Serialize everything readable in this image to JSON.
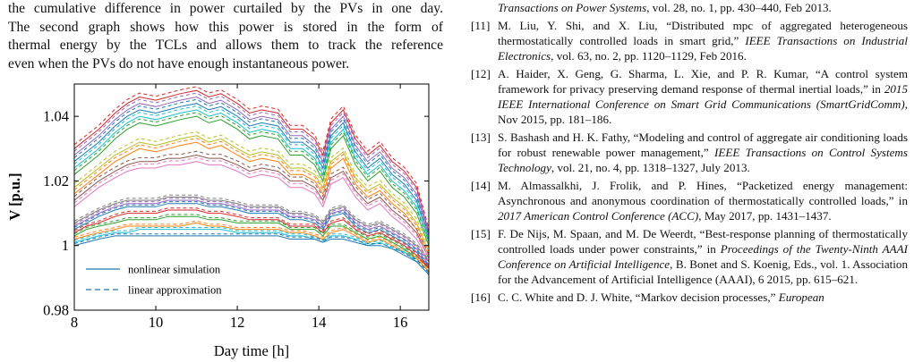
{
  "left_column": {
    "lines": [
      "the cumulative difference in power curtailed by the PVs in one day.",
      "The second graph shows how this power is stored in the form of",
      "thermal energy by the TCLs and allows them to track the reference",
      "even when the PVs do not have enough instantaneous power."
    ]
  },
  "chart_data": {
    "type": "line",
    "xlabel": "Day time [h]",
    "ylabel": "V [p.u.]",
    "xlim": [
      8,
      16.7
    ],
    "ylim": [
      0.98,
      1.05
    ],
    "x_ticks": [
      "8",
      "10",
      "12",
      "14",
      "16"
    ],
    "y_ticks": [
      "0.98",
      "1",
      "1.02",
      "1.04"
    ],
    "legend_position": "bottom-left",
    "legend": [
      {
        "label": "nonlinear simulation",
        "style": "solid",
        "color": "#1f77b4"
      },
      {
        "label": "linear approximation",
        "style": "dashed",
        "color": "#1f77b4"
      }
    ],
    "grid": false,
    "series_profile_x": [
      8.0,
      8.3,
      8.6,
      9.0,
      9.3,
      9.6,
      10.0,
      10.3,
      10.6,
      11.0,
      11.3,
      11.6,
      12.0,
      12.3,
      12.6,
      13.0,
      13.3,
      13.6,
      13.9,
      14.1,
      14.3,
      14.6,
      14.9,
      15.2,
      15.5,
      15.8,
      16.1,
      16.4,
      16.7
    ],
    "series": [
      {
        "color": "#d62728",
        "values": [
          1.03,
          1.033,
          1.036,
          1.041,
          1.044,
          1.046,
          1.045,
          1.046,
          1.047,
          1.048,
          1.046,
          1.047,
          1.044,
          1.041,
          1.042,
          1.041,
          1.036,
          1.036,
          1.033,
          1.028,
          1.038,
          1.042,
          1.033,
          1.028,
          1.031,
          1.026,
          1.023,
          1.018,
          1.004
        ]
      },
      {
        "color": "#9467bd",
        "values": [
          1.028,
          1.031,
          1.034,
          1.039,
          1.042,
          1.044,
          1.043,
          1.044,
          1.045,
          1.046,
          1.044,
          1.045,
          1.042,
          1.039,
          1.04,
          1.039,
          1.034,
          1.034,
          1.031,
          1.026,
          1.036,
          1.04,
          1.031,
          1.026,
          1.029,
          1.024,
          1.021,
          1.016,
          1.003
        ]
      },
      {
        "color": "#1f77b4",
        "values": [
          1.026,
          1.029,
          1.032,
          1.037,
          1.04,
          1.042,
          1.041,
          1.042,
          1.043,
          1.044,
          1.042,
          1.043,
          1.04,
          1.037,
          1.038,
          1.037,
          1.032,
          1.032,
          1.029,
          1.024,
          1.034,
          1.038,
          1.029,
          1.024,
          1.027,
          1.022,
          1.019,
          1.014,
          1.002
        ]
      },
      {
        "color": "#17becf",
        "values": [
          1.024,
          1.027,
          1.03,
          1.035,
          1.038,
          1.04,
          1.039,
          1.04,
          1.041,
          1.042,
          1.04,
          1.041,
          1.038,
          1.035,
          1.036,
          1.035,
          1.03,
          1.03,
          1.027,
          1.022,
          1.032,
          1.036,
          1.027,
          1.022,
          1.025,
          1.02,
          1.017,
          1.012,
          1.001
        ]
      },
      {
        "color": "#2ca02c",
        "values": [
          1.022,
          1.025,
          1.028,
          1.033,
          1.036,
          1.038,
          1.037,
          1.038,
          1.039,
          1.04,
          1.038,
          1.039,
          1.036,
          1.033,
          1.034,
          1.033,
          1.028,
          1.028,
          1.025,
          1.02,
          1.03,
          1.034,
          1.025,
          1.02,
          1.023,
          1.018,
          1.015,
          1.01,
          1.0
        ]
      },
      {
        "color": "#bcbd22",
        "values": [
          1.018,
          1.021,
          1.024,
          1.028,
          1.03,
          1.032,
          1.031,
          1.032,
          1.033,
          1.034,
          1.032,
          1.033,
          1.03,
          1.028,
          1.029,
          1.028,
          1.024,
          1.024,
          1.022,
          1.018,
          1.026,
          1.029,
          1.021,
          1.017,
          1.019,
          1.015,
          1.012,
          1.007,
          0.998
        ]
      },
      {
        "color": "#ff7f0e",
        "values": [
          1.016,
          1.019,
          1.022,
          1.026,
          1.028,
          1.03,
          1.029,
          1.03,
          1.031,
          1.032,
          1.03,
          1.031,
          1.028,
          1.026,
          1.027,
          1.026,
          1.022,
          1.022,
          1.02,
          1.016,
          1.024,
          1.027,
          1.019,
          1.015,
          1.017,
          1.013,
          1.01,
          1.005,
          0.997
        ]
      },
      {
        "color": "#8c564b",
        "values": [
          1.014,
          1.017,
          1.02,
          1.023,
          1.025,
          1.026,
          1.026,
          1.027,
          1.027,
          1.028,
          1.027,
          1.027,
          1.025,
          1.023,
          1.024,
          1.023,
          1.02,
          1.02,
          1.018,
          1.014,
          1.021,
          1.023,
          1.017,
          1.013,
          1.015,
          1.011,
          1.008,
          1.004,
          0.996
        ]
      },
      {
        "color": "#e377c2",
        "values": [
          1.012,
          1.015,
          1.018,
          1.021,
          1.023,
          1.024,
          1.024,
          1.025,
          1.025,
          1.026,
          1.025,
          1.025,
          1.023,
          1.021,
          1.022,
          1.021,
          1.018,
          1.018,
          1.016,
          1.012,
          1.019,
          1.021,
          1.015,
          1.011,
          1.013,
          1.009,
          1.006,
          1.002,
          0.995
        ]
      },
      {
        "color": "#7f7f7f",
        "values": [
          1.007,
          1.009,
          1.011,
          1.013,
          1.014,
          1.014,
          1.014,
          1.015,
          1.015,
          1.015,
          1.014,
          1.014,
          1.013,
          1.012,
          1.012,
          1.012,
          1.01,
          1.01,
          1.009,
          1.007,
          1.011,
          1.012,
          1.008,
          1.006,
          1.007,
          1.005,
          1.003,
          1.0,
          0.995
        ]
      },
      {
        "color": "#9467bd",
        "values": [
          1.006,
          1.008,
          1.01,
          1.012,
          1.013,
          1.013,
          1.013,
          1.014,
          1.014,
          1.014,
          1.013,
          1.013,
          1.012,
          1.011,
          1.011,
          1.011,
          1.009,
          1.009,
          1.008,
          1.006,
          1.01,
          1.011,
          1.007,
          1.005,
          1.006,
          1.004,
          1.002,
          0.999,
          0.994
        ]
      },
      {
        "color": "#1f77b4",
        "values": [
          1.005,
          1.007,
          1.009,
          1.011,
          1.012,
          1.012,
          1.012,
          1.013,
          1.013,
          1.013,
          1.012,
          1.012,
          1.011,
          1.01,
          1.01,
          1.01,
          1.008,
          1.008,
          1.007,
          1.005,
          1.009,
          1.01,
          1.006,
          1.004,
          1.005,
          1.003,
          1.001,
          0.998,
          0.993
        ]
      },
      {
        "color": "#d62728",
        "values": [
          1.004,
          1.006,
          1.007,
          1.009,
          1.01,
          1.01,
          1.01,
          1.011,
          1.011,
          1.011,
          1.01,
          1.01,
          1.009,
          1.008,
          1.008,
          1.008,
          1.006,
          1.006,
          1.006,
          1.004,
          1.007,
          1.008,
          1.005,
          1.003,
          1.004,
          1.002,
          1.0,
          0.997,
          0.993
        ]
      },
      {
        "color": "#2ca02c",
        "values": [
          1.003,
          1.005,
          1.006,
          1.007,
          1.008,
          1.008,
          1.008,
          1.009,
          1.009,
          1.009,
          1.008,
          1.008,
          1.007,
          1.007,
          1.007,
          1.007,
          1.005,
          1.005,
          1.005,
          1.003,
          1.006,
          1.006,
          1.004,
          1.002,
          1.003,
          1.001,
          0.999,
          0.996,
          0.992
        ]
      },
      {
        "color": "#ff7f0e",
        "values": [
          1.002,
          1.003,
          1.004,
          1.005,
          1.006,
          1.006,
          1.006,
          1.006,
          1.006,
          1.007,
          1.006,
          1.006,
          1.005,
          1.005,
          1.005,
          1.005,
          1.004,
          1.004,
          1.003,
          1.002,
          1.004,
          1.005,
          1.003,
          1.001,
          1.002,
          1.0,
          0.998,
          0.996,
          0.992
        ]
      },
      {
        "color": "#17becf",
        "values": [
          1.001,
          1.002,
          1.003,
          1.004,
          1.004,
          1.005,
          1.005,
          1.005,
          1.005,
          1.005,
          1.005,
          1.005,
          1.004,
          1.004,
          1.004,
          1.004,
          1.003,
          1.003,
          1.002,
          1.001,
          1.003,
          1.003,
          1.002,
          1.0,
          1.001,
          0.999,
          0.998,
          0.995,
          0.991
        ]
      },
      {
        "color": "#1f77b4",
        "values": [
          1.0,
          1.001,
          1.002,
          1.003,
          1.003,
          1.003,
          1.003,
          1.003,
          1.003,
          1.003,
          1.003,
          1.003,
          1.003,
          1.003,
          1.003,
          1.003,
          1.002,
          1.002,
          1.002,
          1.001,
          1.002,
          1.002,
          1.001,
          1.0,
          1.0,
          0.999,
          0.997,
          0.995,
          0.991
        ]
      }
    ]
  },
  "references": [
    {
      "num": "",
      "venue": "Transactions on Power Systems",
      "rest": ", vol. 28, no. 1, pp. 430–440, Feb 2013.",
      "pre": ""
    },
    {
      "num": "[11]",
      "pre": "M. Liu, Y. Shi, and X. Liu, “Distributed mpc of aggregated heterogeneous thermostatically controlled loads in smart grid,” ",
      "venue": "IEEE Transactions on Industrial Electronics",
      "rest": ", vol. 63, no. 2, pp. 1120–1129, Feb 2016."
    },
    {
      "num": "[12]",
      "pre": "A. Haider, X. Geng, G. Sharma, L. Xie, and P. R. Kumar, “A control system framework for privacy preserving demand response of thermal inertial loads,” in ",
      "venue": "2015 IEEE International Conference on Smart Grid Communications (SmartGridComm)",
      "rest": ", Nov 2015, pp. 181–186."
    },
    {
      "num": "[13]",
      "pre": "S. Bashash and H. K. Fathy, “Modeling and control of aggregate air conditioning loads for robust renewable power management,” ",
      "venue": "IEEE Transactions on Control Systems Technology",
      "rest": ", vol. 21, no. 4, pp. 1318–1327, July 2013."
    },
    {
      "num": "[14]",
      "pre": "M. Almassalkhi, J. Frolik, and P. Hines, “Packetized energy management: Asynchronous and anonymous coordination of thermostatically controlled loads,” in ",
      "venue": "2017 American Control Conference (ACC)",
      "rest": ", May 2017, pp. 1431–1437."
    },
    {
      "num": "[15]",
      "pre": "F. De Nijs, M. Spaan, and M. De Weerdt, “Best-response planning of thermostatically controlled loads under power constraints,” in ",
      "venue": "Proceedings of the Twenty-Ninth AAAI Conference on Artificial Intelligence",
      "rest": ", B. Bonet and S. Koenig, Eds., vol. 1. Association for the Advancement of Artificial Intelligence (AAAI), 6 2015, pp. 615–621."
    },
    {
      "num": "[16]",
      "pre": "C. C. White and D. J. White, “Markov decision processes,” ",
      "venue": "European",
      "rest": ""
    }
  ]
}
